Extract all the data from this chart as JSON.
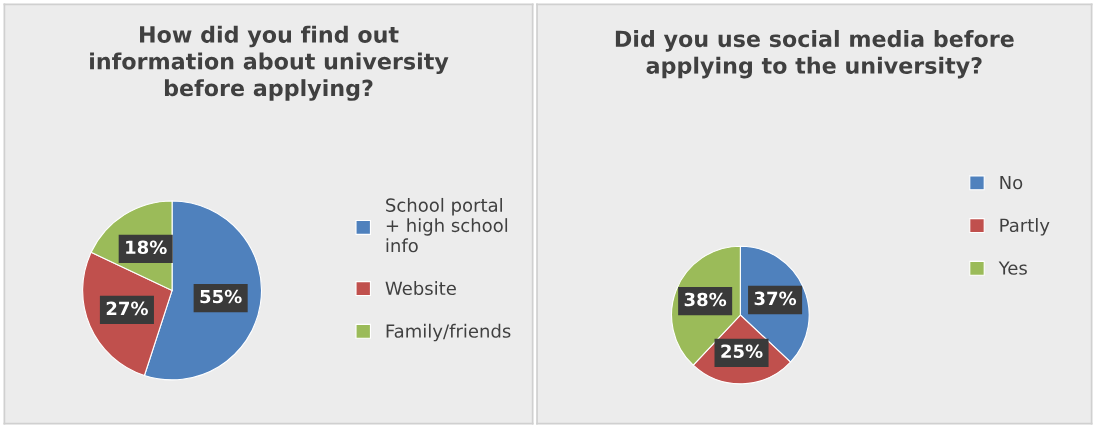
{
  "chart_data": [
    {
      "type": "pie",
      "title": "How did you find out\ninformation about university\nbefore applying?",
      "categories": [
        "School portal\n+ high school\ninfo",
        "Website",
        "Family/friends"
      ],
      "values": [
        55,
        27,
        18
      ],
      "colors": [
        "#4f81bd",
        "#c0504d",
        "#9bbb59"
      ],
      "value_labels": [
        "55%",
        "27%",
        "18%"
      ],
      "legend": "right"
    },
    {
      "type": "pie",
      "title": "Did you use social media before\napplying to the university?",
      "categories": [
        "No",
        "Partly",
        "Yes"
      ],
      "values": [
        37,
        25,
        38
      ],
      "colors": [
        "#4f81bd",
        "#c0504d",
        "#9bbb59"
      ],
      "value_labels": [
        "37%",
        "25%",
        "38%"
      ],
      "legend": "right"
    }
  ]
}
